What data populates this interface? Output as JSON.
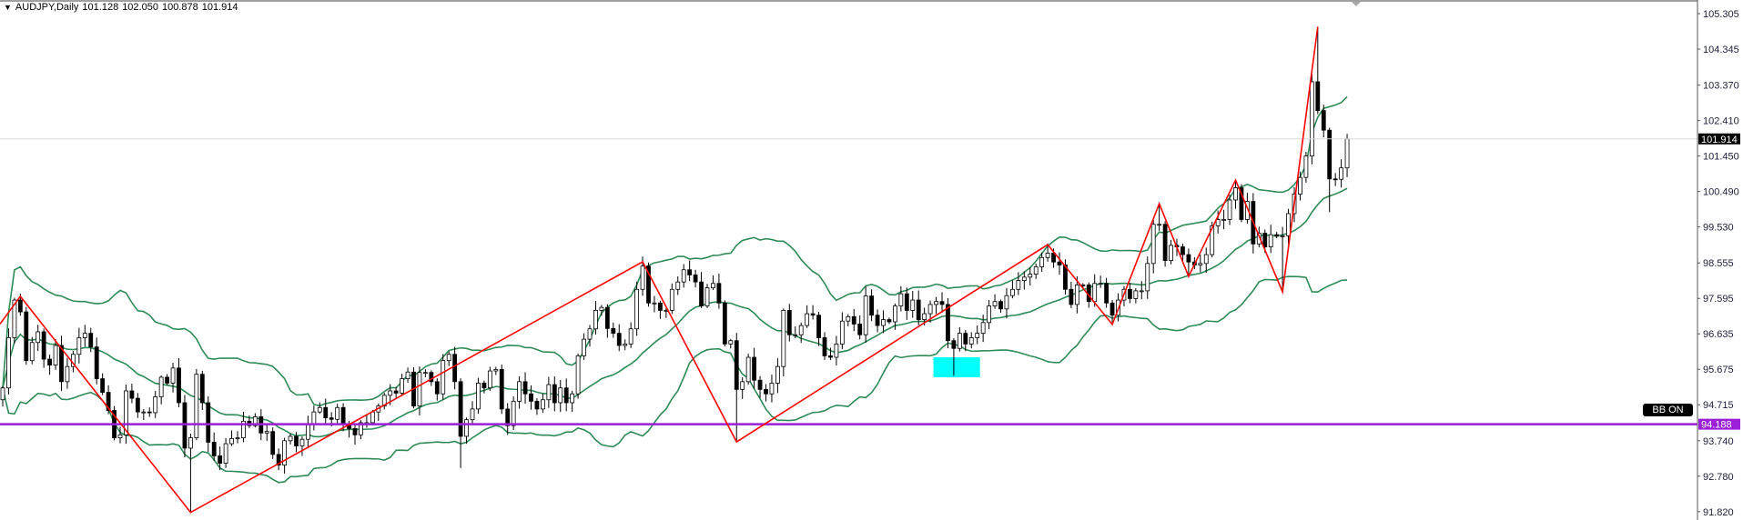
{
  "header": {
    "symbol_timeframe": "AUDJPY,Daily",
    "open": "101.128",
    "high": "102.050",
    "low": "100.878",
    "close": "101.914"
  },
  "bb_label": "BB ON",
  "colors": {
    "bands": "#2e8b57",
    "zigzag": "#ff0000",
    "level_line": "#9b1fd6",
    "bid_line": "#d8d8d8",
    "highlight_box": "#00ffff",
    "bull_body": "#ffffff",
    "bear_body": "#000000"
  },
  "chart_data": {
    "type": "candlestick",
    "symbol": "AUDJPY",
    "timeframe": "Daily",
    "y_ticks": [
      "105.305",
      "104.345",
      "103.370",
      "102.410",
      "101.450",
      "100.490",
      "99.530",
      "98.555",
      "97.595",
      "96.635",
      "95.675",
      "94.715",
      "93.740",
      "92.780",
      "91.820"
    ],
    "ylim": [
      91.6,
      105.6
    ],
    "grid": false,
    "first_open": 94.85,
    "close": [
      95.17,
      96.53,
      97.55,
      97.23,
      95.91,
      96.4,
      96.69,
      95.95,
      95.79,
      96.32,
      95.34,
      95.75,
      96.08,
      96.53,
      96.65,
      96.28,
      95.42,
      95.05,
      94.56,
      93.82,
      93.9,
      95.09,
      94.89,
      94.52,
      94.52,
      94.5,
      94.93,
      95.46,
      95.3,
      95.71,
      94.77,
      93.54,
      93.82,
      95.54,
      94.77,
      93.7,
      93.33,
      93.13,
      93.66,
      93.8,
      93.82,
      94.27,
      94.15,
      94.39,
      93.95,
      93.99,
      93.37,
      93.08,
      93.74,
      93.86,
      93.6,
      93.78,
      94.19,
      94.52,
      94.64,
      94.36,
      94.32,
      94.64,
      94.19,
      94.07,
      93.9,
      94.23,
      94.23,
      94.52,
      94.68,
      94.97,
      95.09,
      95.03,
      95.42,
      95.6,
      94.68,
      95.59,
      95.59,
      95.34,
      95.01,
      95.91,
      96.08,
      95.34,
      93.86,
      94.31,
      94.6,
      95.3,
      95.17,
      95.63,
      95.67,
      94.6,
      94.15,
      94.81,
      95.34,
      95.01,
      94.81,
      94.6,
      94.85,
      95.26,
      94.77,
      95.17,
      94.77,
      95.01,
      96.04,
      96.49,
      96.77,
      97.27,
      97.35,
      96.78,
      96.65,
      96.32,
      96.36,
      96.77,
      97.84,
      98.47,
      97.47,
      97.47,
      97.27,
      97.27,
      97.84,
      98.04,
      98.37,
      98.23,
      98.04,
      97.39,
      97.88,
      98.0,
      97.47,
      96.36,
      96.45,
      95.13,
      95.34,
      96.0,
      95.38,
      95.13,
      95.01,
      95.3,
      95.75,
      97.27,
      96.61,
      96.61,
      96.86,
      97.18,
      97.14,
      96.53,
      96.04,
      96.0,
      96.36,
      96.98,
      97.1,
      96.9,
      96.61,
      97.66,
      97.14,
      96.86,
      97.02,
      96.96,
      97.39,
      97.72,
      97.27,
      97.55,
      97.02,
      97.18,
      97.43,
      97.51,
      97.43,
      96.45,
      96.24,
      96.65,
      96.36,
      96.53,
      96.65,
      96.94,
      97.39,
      97.51,
      97.31,
      97.67,
      97.84,
      98.08,
      98.17,
      98.25,
      98.45,
      98.7,
      98.82,
      98.58,
      98.5,
      97.84,
      97.43,
      97.96,
      97.96,
      97.51,
      98.0,
      98.0,
      97.47,
      97.14,
      97.55,
      97.84,
      97.59,
      97.8,
      97.8,
      98.54,
      99.6,
      99.6,
      98.62,
      99.03,
      98.99,
      98.78,
      98.58,
      98.5,
      98.54,
      98.78,
      99.56,
      99.73,
      99.73,
      100.26,
      100.59,
      99.73,
      100.22,
      99.07,
      99.36,
      98.99,
      99.32,
      99.28,
      99.29,
      99.89,
      100.42,
      100.87,
      101.45,
      103.46,
      102.68,
      102.15,
      100.83,
      100.82,
      101.128,
      101.914
    ],
    "extremes": [
      {
        "bar": 78,
        "type": "low",
        "price": 93.0
      },
      {
        "bar": 162,
        "type": "low",
        "price": 95.5
      },
      {
        "bar": 226,
        "type": "low",
        "price": 99.93
      },
      {
        "bar": 229,
        "type": "high",
        "price": 102.05
      },
      {
        "bar": 229,
        "type": "low",
        "price": 100.878
      }
    ],
    "zigzag": [
      {
        "bar": -1,
        "price": 96.9
      },
      {
        "bar": 3,
        "price": 97.65,
        "type": "high"
      },
      {
        "bar": 32,
        "price": 91.8,
        "type": "low"
      },
      {
        "bar": 109,
        "price": 98.585,
        "type": "high"
      },
      {
        "bar": 125,
        "price": 93.71,
        "type": "low"
      },
      {
        "bar": 178,
        "price": 99.05,
        "type": "high"
      },
      {
        "bar": 189,
        "price": 96.89,
        "type": "low"
      },
      {
        "bar": 197,
        "price": 100.16,
        "type": "high"
      },
      {
        "bar": 202,
        "price": 98.19,
        "type": "low"
      },
      {
        "bar": 210,
        "price": 100.8,
        "type": "high"
      },
      {
        "bar": 218,
        "price": 97.77,
        "type": "low"
      },
      {
        "bar": 224,
        "price": 104.95,
        "type": "high"
      }
    ],
    "bollinger": {
      "period": 20,
      "deviations": 2
    },
    "horizontal_level": {
      "price": 94.188,
      "label": "94.188"
    },
    "bid_line": {
      "price": 101.914,
      "label": "101.914"
    },
    "highlight_box": {
      "bar_from": 159,
      "bar_to": 166,
      "price_top": 96.0,
      "price_bottom": 95.46
    }
  }
}
